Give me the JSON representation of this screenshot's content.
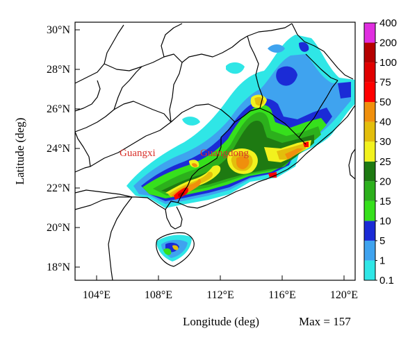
{
  "title": "",
  "x_axis": {
    "label": "Longitude (deg)",
    "ticks": [
      "104°E",
      "108°E",
      "112°E",
      "116°E",
      "120°E"
    ],
    "values": [
      104,
      108,
      112,
      116,
      120
    ],
    "range": [
      102.5,
      120.7
    ]
  },
  "y_axis": {
    "label": "Latitude (deg)",
    "ticks": [
      "18°N",
      "20°N",
      "22°N",
      "24°N",
      "26°N",
      "28°N",
      "30°N"
    ],
    "values": [
      18,
      20,
      22,
      24,
      26,
      28,
      30
    ],
    "range": [
      17.3,
      30.5
    ]
  },
  "annotation": "Max = 157",
  "places": [
    {
      "name": "Guangxi",
      "lon": 107.9,
      "lat": 23.9
    },
    {
      "name": "Guangdong",
      "lon": 113.4,
      "lat": 23.8
    }
  ],
  "colorbar": {
    "levels": [
      "0.1",
      "1",
      "5",
      "10",
      "15",
      "20",
      "25",
      "30",
      "40",
      "50",
      "75",
      "100",
      "200",
      "400"
    ],
    "colors": [
      "#2fe6e6",
      "#3fa3ef",
      "#1b2bd6",
      "#36e01c",
      "#2cb01c",
      "#1e7a12",
      "#f2f21e",
      "#e3be0c",
      "#f08f0c",
      "#ff0000",
      "#e00000",
      "#b50000",
      "#e02ee0"
    ]
  },
  "colors": {
    "province_label": "#d9302a",
    "boundary": "#000000"
  }
}
